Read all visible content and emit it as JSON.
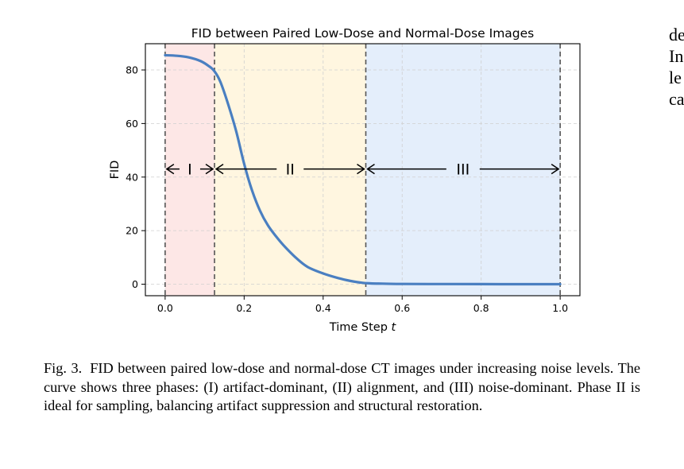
{
  "figure": {
    "caption_label": "Fig. 3.",
    "caption_text": "FID between paired low-dose and normal-dose CT images under increasing noise levels. The curve shows three phases: (I) artifact-dominant, (II) alignment, and (III) noise-dominant. Phase II is ideal for sampling, balancing artifact suppression and structural restoration."
  },
  "side_text": {
    "lines": [
      "de",
      "In",
      "le",
      "ca"
    ]
  },
  "chart_data": {
    "type": "line",
    "title": "FID between Paired Low-Dose and Normal-Dose Images",
    "xlabel": "Time Step",
    "xlabel_var": "t",
    "ylabel": "FID",
    "xlim": [
      -0.05,
      1.05
    ],
    "ylim": [
      -4.3,
      89.8
    ],
    "xticks": [
      0.0,
      0.2,
      0.4,
      0.6,
      0.8,
      1.0
    ],
    "xtick_labels": [
      "0.0",
      "0.2",
      "0.4",
      "0.6",
      "0.8",
      "1.0"
    ],
    "yticks": [
      0,
      20,
      40,
      60,
      80
    ],
    "ytick_labels": [
      "0",
      "20",
      "40",
      "60",
      "80"
    ],
    "grid": true,
    "line_color": "#4a7fc1",
    "series": [
      {
        "x": [
          0.0,
          0.03,
          0.06,
          0.09,
          0.11,
          0.125,
          0.14,
          0.16,
          0.18,
          0.2,
          0.22,
          0.24,
          0.26,
          0.28,
          0.3,
          0.33,
          0.36,
          0.4,
          0.44,
          0.47,
          0.5,
          0.52,
          0.55,
          0.6,
          0.7,
          0.8,
          0.9,
          1.0
        ],
        "y": [
          85.5,
          85.3,
          84.7,
          83.3,
          81.5,
          79.5,
          75.5,
          67.0,
          57.0,
          45.0,
          35.0,
          27.5,
          22.0,
          18.0,
          14.5,
          10.0,
          6.5,
          4.0,
          2.2,
          1.2,
          0.5,
          0.3,
          0.2,
          0.1,
          0.05,
          0.02,
          0.0,
          0.0
        ]
      }
    ],
    "phase_boundaries": [
      0.0,
      0.125,
      0.508,
      1.0
    ],
    "phases": [
      {
        "label": "I",
        "start": 0.0,
        "end": 0.125,
        "color": "#fde7e6"
      },
      {
        "label": "II",
        "start": 0.125,
        "end": 0.508,
        "color": "#fff6e0"
      },
      {
        "label": "III",
        "start": 0.508,
        "end": 1.0,
        "color": "#e4eefb"
      }
    ],
    "arrow_y": 43.0
  }
}
